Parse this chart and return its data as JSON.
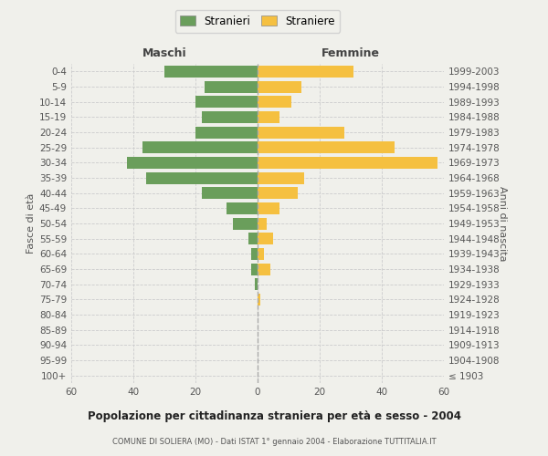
{
  "age_groups": [
    "100+",
    "95-99",
    "90-94",
    "85-89",
    "80-84",
    "75-79",
    "70-74",
    "65-69",
    "60-64",
    "55-59",
    "50-54",
    "45-49",
    "40-44",
    "35-39",
    "30-34",
    "25-29",
    "20-24",
    "15-19",
    "10-14",
    "5-9",
    "0-4"
  ],
  "birth_years": [
    "≤ 1903",
    "1904-1908",
    "1909-1913",
    "1914-1918",
    "1919-1923",
    "1924-1928",
    "1929-1933",
    "1934-1938",
    "1939-1943",
    "1944-1948",
    "1949-1953",
    "1954-1958",
    "1959-1963",
    "1964-1968",
    "1969-1973",
    "1974-1978",
    "1979-1983",
    "1984-1988",
    "1989-1993",
    "1994-1998",
    "1999-2003"
  ],
  "males": [
    0,
    0,
    0,
    0,
    0,
    0,
    1,
    2,
    2,
    3,
    8,
    10,
    18,
    36,
    42,
    37,
    20,
    18,
    20,
    17,
    30
  ],
  "females": [
    0,
    0,
    0,
    0,
    0,
    1,
    0,
    4,
    2,
    5,
    3,
    7,
    13,
    15,
    58,
    44,
    28,
    7,
    11,
    14,
    31
  ],
  "male_color": "#6a9e5b",
  "female_color": "#f5c040",
  "background_color": "#f0f0eb",
  "grid_color": "#cccccc",
  "center_line_color": "#aaaaaa",
  "title": "Popolazione per cittadinanza straniera per età e sesso - 2004",
  "subtitle": "COMUNE DI SOLIERA (MO) - Dati ISTAT 1° gennaio 2004 - Elaborazione TUTTITALIA.IT",
  "xlabel_left": "Maschi",
  "xlabel_right": "Femmine",
  "ylabel_left": "Fasce di età",
  "ylabel_right": "Anni di nascita",
  "legend_male": "Stranieri",
  "legend_female": "Straniere",
  "xlim": 60
}
